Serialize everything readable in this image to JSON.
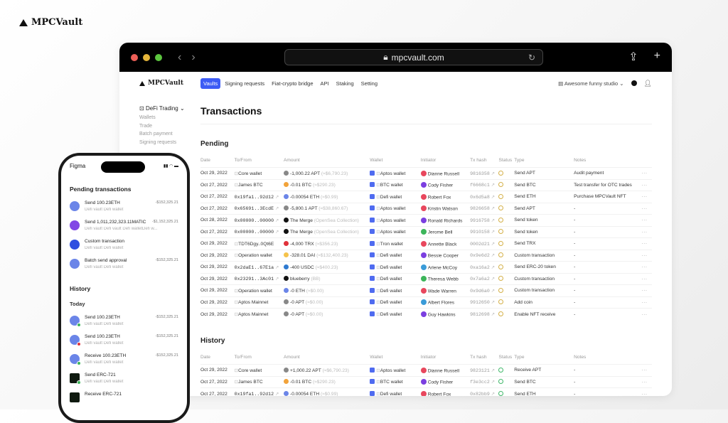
{
  "brand": {
    "name": "MPCVault"
  },
  "browser": {
    "url": "mpcvault.com",
    "traffic_colors": [
      "#ec5f57",
      "#e5b53a",
      "#5cc53f"
    ]
  },
  "app": {
    "logo": "MPCVault",
    "nav": [
      {
        "label": "Vaults",
        "active": true
      },
      {
        "label": "Signing requests"
      },
      {
        "label": "Fiat-crypto bridge"
      },
      {
        "label": "API"
      },
      {
        "label": "Staking"
      },
      {
        "label": "Setting"
      }
    ],
    "org": "Awesome funny studio",
    "accent": "#3d5cf5"
  },
  "sidebar": {
    "group": "DeFi Trading",
    "items": [
      "Wallets",
      "Trade",
      "Batch payment",
      "Signing requests"
    ]
  },
  "page": {
    "title": "Transactions"
  },
  "columns": [
    "Date",
    "To/From",
    "Amount",
    "Wallet",
    "Initiator",
    "Tx hash",
    "Status",
    "Type",
    "Notes"
  ],
  "pending": {
    "title": "Pending",
    "rows": [
      {
        "date": "Oct 29, 2022",
        "to": "Core wallet",
        "amount": "-1,000.22 APT",
        "fiat": "(≈$6,790.23)",
        "coin": "#888888",
        "wallet": "Aptos wallet",
        "initiator": "Dianne Russell",
        "av": "#e8475d",
        "hash": "9816358",
        "type": "Send APT",
        "notes": "Audit payment"
      },
      {
        "date": "Oct 27, 2022",
        "to": "James BTC",
        "amount": "-0.01 BTC",
        "fiat": "(≈$290.23)",
        "coin": "#f2a33a",
        "wallet": "BTC wallet",
        "initiator": "Cody Fisher",
        "av": "#7b3fe0",
        "hash": "f6668c1",
        "type": "Send BTC",
        "notes": "Test transfer for OTC trades"
      },
      {
        "date": "Oct 27, 2022",
        "to": "0x19fa1..92d12",
        "mono": true,
        "amount": "-0.00054 ETH",
        "fiat": "(≈$0.99)",
        "coin": "#6b85e8",
        "wallet": "Defi wallet",
        "initiator": "Robert Fox",
        "av": "#e8475d",
        "hash": "0x6d5a8",
        "type": "Send ETH",
        "notes": "Purchase MPCVault NFT"
      },
      {
        "date": "Oct 27, 2022",
        "to": "0x65691..3EcdE",
        "mono": true,
        "amount": "-5,800.1 APT",
        "fiat": "(≈$38,860.67)",
        "coin": "#888888",
        "wallet": "Aptos wallet",
        "initiator": "Kristin Watson",
        "av": "#e8475d",
        "hash": "9826658",
        "type": "Send APT",
        "notes": "-"
      },
      {
        "date": "Oct 28, 2022",
        "to": "0x00000..00000",
        "mono": true,
        "amount": "The Merge",
        "fiat": "(OpenSea Collection)",
        "coin": "#111111",
        "wallet": "Aptos wallet",
        "initiator": "Ronald Richards",
        "av": "#7b3fe0",
        "hash": "9916758",
        "type": "Send token",
        "notes": "-"
      },
      {
        "date": "Oct 27, 2022",
        "to": "0x00000..00000",
        "mono": true,
        "amount": "The Merge",
        "fiat": "(OpenSea Collection)",
        "coin": "#111111",
        "wallet": "Aptos wallet",
        "initiator": "Jerome Bell",
        "av": "#3cb55a",
        "hash": "9910158",
        "type": "Send token",
        "notes": "-"
      },
      {
        "date": "Oct 29, 2022",
        "to": "TDT6Dgy..0Qt6E",
        "amount": "-4,000 TRX",
        "fiat": "(≈$356.23)",
        "coin": "#e0323a",
        "wallet": "Tron wallet",
        "initiator": "Annette Black",
        "av": "#e8475d",
        "hash": "0002d21",
        "type": "Send TRX",
        "notes": "-"
      },
      {
        "date": "Oct 29, 2022",
        "to": "Operation wallet",
        "amount": "-328.01 DAI",
        "fiat": "(≈$132,400.23)",
        "coin": "#f5c34b",
        "wallet": "Defi wallet",
        "initiator": "Bessie Cooper",
        "av": "#7b3fe0",
        "hash": "0x9e6d2",
        "type": "Custom transaction",
        "notes": "-"
      },
      {
        "date": "Oct 29, 2022",
        "to": "0x2daE1..67E1a",
        "mono": true,
        "amount": "-400 USDC",
        "fiat": "(≈$400.23)",
        "coin": "#2f7ad0",
        "wallet": "Defi wallet",
        "initiator": "Arlene McCoy",
        "av": "#3a9bd8",
        "hash": "0xa16a2",
        "type": "Send ERC-20 token",
        "notes": "-"
      },
      {
        "date": "Oct 29, 2022",
        "to": "0x23291..3Ac01",
        "mono": true,
        "amount": "blueberry",
        "fiat": "(BB)",
        "coin": "#111111",
        "wallet": "Defi wallet",
        "initiator": "Theresa Webb",
        "av": "#3cb55a",
        "hash": "0x7a6a2",
        "type": "Custom transaction",
        "notes": "-"
      },
      {
        "date": "Oct 29, 2022",
        "to": "Operation wallet",
        "amount": "-0 ETH",
        "fiat": "(≈$0.00)",
        "coin": "#6b85e8",
        "wallet": "Defi wallet",
        "initiator": "Wade Warren",
        "av": "#e8475d",
        "hash": "0x9d6a0",
        "type": "Custom transaction",
        "notes": "-"
      },
      {
        "date": "Oct 29, 2022",
        "to": "Aptos Mainnet",
        "amount": "-0 APT",
        "fiat": "(≈$0.00)",
        "coin": "#888888",
        "wallet": "Defi wallet",
        "initiator": "Albert Flores",
        "av": "#3a9bd8",
        "hash": "9912650",
        "type": "Add coin",
        "notes": "-"
      },
      {
        "date": "Oct 29, 2022",
        "to": "Aptos Mainnet",
        "amount": "-0 APT",
        "fiat": "(≈$0.00)",
        "coin": "#888888",
        "wallet": "Defi wallet",
        "initiator": "Guy Hawkins",
        "av": "#7b3fe0",
        "hash": "9812698",
        "type": "Enable NFT receive",
        "notes": "-"
      }
    ]
  },
  "history": {
    "title": "History",
    "rows": [
      {
        "date": "Oct 29, 2022",
        "to": "Core wallet",
        "amount": "+1,000.22 APT",
        "fiat": "(≈$6,790.23)",
        "coin": "#888888",
        "wallet": "Aptos wallet",
        "initiator": "Dianne Russell",
        "av": "#e8475d",
        "hash": "9823121",
        "type": "Receive APT",
        "notes": "-"
      },
      {
        "date": "Oct 27, 2022",
        "to": "James BTC",
        "amount": "-0.01 BTC",
        "fiat": "(≈$290.23)",
        "coin": "#f2a33a",
        "wallet": "BTC wallet",
        "initiator": "Cody Fisher",
        "av": "#7b3fe0",
        "hash": "f3e3cc2",
        "type": "Send BTC",
        "notes": "-"
      },
      {
        "date": "Oct 27, 2022",
        "to": "0x19fa1..92d12",
        "mono": true,
        "amount": "-0.00054 ETH",
        "fiat": "(≈$0.99)",
        "coin": "#6b85e8",
        "wallet": "Defi wallet",
        "initiator": "Robert Fox",
        "av": "#e8475d",
        "hash": "0x82bb9",
        "type": "Send ETH",
        "notes": "-"
      }
    ]
  },
  "phone": {
    "app": "Figma",
    "pending_title": "Pending transactions",
    "pending": [
      {
        "title": "Send 100.23ETH",
        "sub": "Defi vault  Defi wallet",
        "amount": "-$152,325.21",
        "color": "#6b85e8"
      },
      {
        "title": "Send 1,011,232,323.11MATIC",
        "sub": "Defi vault Defi vault  Defi walletDefi w...",
        "amount": "-$1,152,325.21",
        "color": "#8247e5"
      },
      {
        "title": "Custom transaction",
        "sub": "Defi vault  Defi wallet",
        "amount": "",
        "color": "#2f4fe0"
      },
      {
        "title": "Batch send approval",
        "sub": "Defi vault  Defi wallet",
        "amount": "-$152,325.21",
        "color": "#6b85e8"
      }
    ],
    "history_title": "History",
    "today": "Today",
    "history": [
      {
        "title": "Send 100.23ETH",
        "sub": "Defi vault  Defi wallet",
        "amount": "-$152,325.21",
        "badge": "#3cb55a",
        "sq": false
      },
      {
        "title": "Send 100.23ETH",
        "sub": "Defi vault  Defi wallet",
        "amount": "-$152,325.21",
        "badge": "#e0323a",
        "sq": false
      },
      {
        "title": "Receive 100.23ETH",
        "sub": "Defi vault  Defi wallet",
        "amount": "-$152,325.21",
        "badge": "#3cb55a",
        "sq": false
      },
      {
        "title": "Send ERC-721",
        "sub": "Defi vault  Defi wallet",
        "amount": "",
        "badge": "#3cb55a",
        "sq": true
      },
      {
        "title": "Receive ERC-721",
        "sub": "",
        "amount": "",
        "badge": "",
        "sq": true
      }
    ]
  }
}
